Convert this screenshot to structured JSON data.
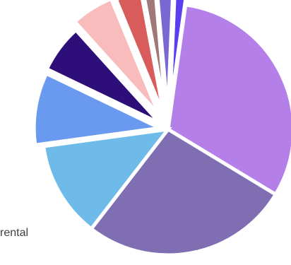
{
  "chart_data": {
    "type": "pie",
    "title": "",
    "legend": "none",
    "slices": [
      {
        "label": "",
        "value": 30.5,
        "color": "#b57fea"
      },
      {
        "label": "",
        "value": 26.0,
        "color": "#7f6fb2"
      },
      {
        "label": "rental",
        "value": 12.0,
        "color": "#6ebbea"
      },
      {
        "label": "",
        "value": 9.0,
        "color": "#6a9af0"
      },
      {
        "label": "",
        "value": 6.0,
        "color": "#2e0e78"
      },
      {
        "label": "",
        "value": 5.3,
        "color": "#f8bcbc"
      },
      {
        "label": "",
        "value": 3.2,
        "color": "#d95c5c"
      },
      {
        "label": "",
        "value": 1.5,
        "color": "#a07878"
      },
      {
        "label": "",
        "value": 2.0,
        "color": "#7b67d2"
      },
      {
        "label": "",
        "value": 1.5,
        "color": "#5a3ff0"
      }
    ]
  }
}
